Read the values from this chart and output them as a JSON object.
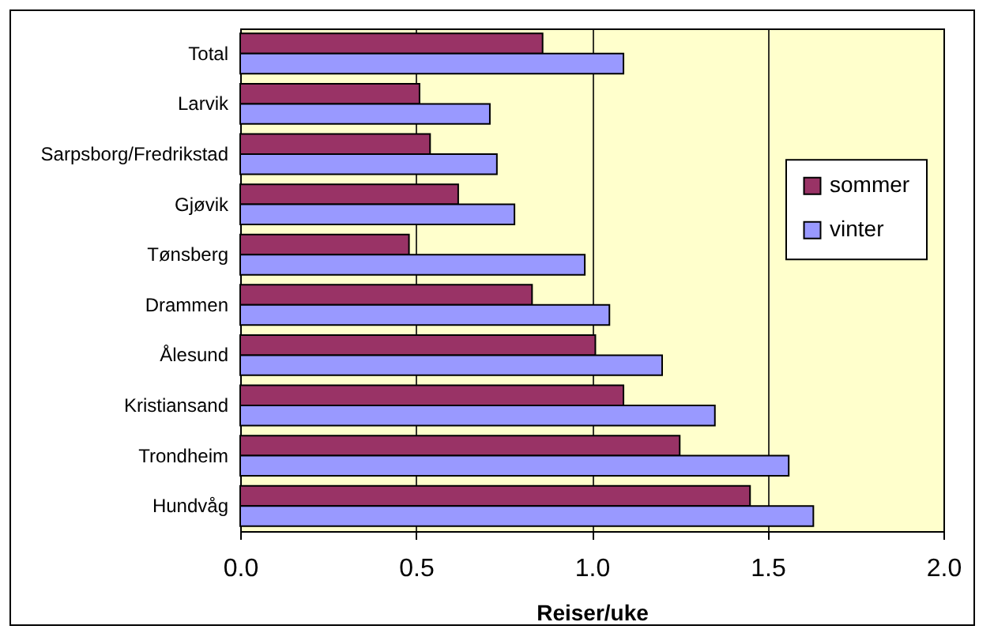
{
  "chart_data": {
    "type": "bar",
    "orientation": "horizontal",
    "xlabel": "Reiser/uke",
    "categories": [
      "Total",
      "Larvik",
      "Sarpsborg/Fredrikstad",
      "Gjøvik",
      "Tønsberg",
      "Drammen",
      "Ålesund",
      "Kristiansand",
      "Trondheim",
      "Hundvåg"
    ],
    "series": [
      {
        "name": "sommer",
        "color": "#993366",
        "values": [
          0.86,
          0.51,
          0.54,
          0.62,
          0.48,
          0.83,
          1.01,
          1.09,
          1.25,
          1.45
        ]
      },
      {
        "name": "vinter",
        "color": "#9999ff",
        "values": [
          1.09,
          0.71,
          0.73,
          0.78,
          0.98,
          1.05,
          1.2,
          1.35,
          1.56,
          1.63
        ]
      }
    ],
    "xlim": [
      0,
      2
    ],
    "xticks": [
      {
        "value": 0,
        "label": "0.0"
      },
      {
        "value": 0.5,
        "label": "0.5"
      },
      {
        "value": 1,
        "label": "1.0"
      },
      {
        "value": 1.5,
        "label": "1.5"
      },
      {
        "value": 2,
        "label": "2.0"
      }
    ],
    "grid": "x",
    "legend": "right"
  }
}
